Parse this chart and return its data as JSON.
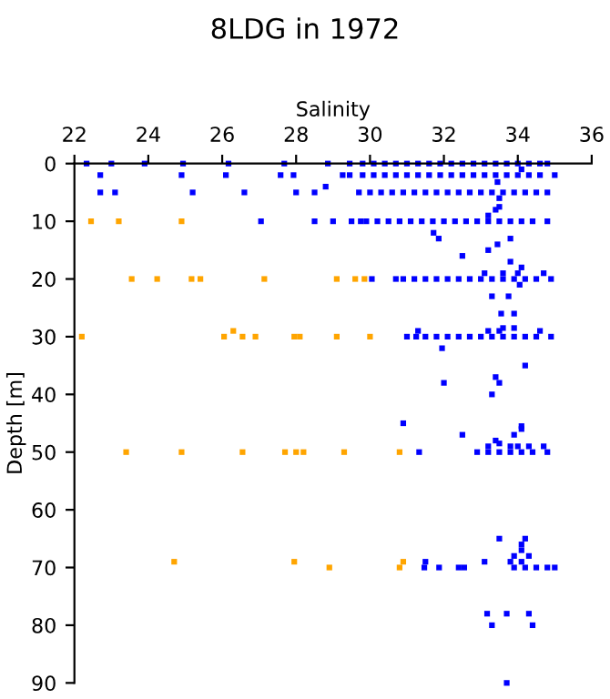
{
  "chart_data": {
    "type": "scatter",
    "title": "8LDG in 1972",
    "xlabel": "Salinity",
    "ylabel": "Depth [m]",
    "xlim": [
      22,
      36
    ],
    "xticks": [
      22,
      24,
      26,
      28,
      30,
      32,
      34,
      36
    ],
    "ylim": [
      90,
      0
    ],
    "yticks": [
      0,
      10,
      20,
      30,
      40,
      50,
      60,
      70,
      80,
      90
    ],
    "marker": "square",
    "grid": false,
    "legend": false,
    "series": [
      {
        "color": "#0000ff",
        "x": [
          22.33,
          23.0,
          23.9,
          24.94,
          26.17,
          27.68,
          28.86,
          29.45,
          29.8,
          30.1,
          30.4,
          30.7,
          31.0,
          31.3,
          31.6,
          31.9,
          32.2,
          32.5,
          32.8,
          33.1,
          33.4,
          33.7,
          34.0,
          34.3,
          34.6,
          34.8,
          34.1,
          22.7,
          24.9,
          26.1,
          27.58,
          27.93,
          29.26,
          29.45,
          29.8,
          30.1,
          30.4,
          30.7,
          31.0,
          31.3,
          31.6,
          31.9,
          32.2,
          32.5,
          32.8,
          33.1,
          33.4,
          33.7,
          34.0,
          34.3,
          34.6,
          35.0,
          33.45,
          28.8,
          22.7,
          23.1,
          25.2,
          26.6,
          28.0,
          28.5,
          29.7,
          30.0,
          30.3,
          30.6,
          30.9,
          31.2,
          31.5,
          31.8,
          32.1,
          32.4,
          32.7,
          33.0,
          33.3,
          33.6,
          33.9,
          34.2,
          34.5,
          34.8,
          33.5,
          33.2,
          33.4,
          33.5,
          27.05,
          28.5,
          29.0,
          29.5,
          29.75,
          29.9,
          30.2,
          30.5,
          30.8,
          31.1,
          31.4,
          31.7,
          32.0,
          32.3,
          32.6,
          32.9,
          33.2,
          33.5,
          33.8,
          34.1,
          34.4,
          34.8,
          31.72,
          31.86,
          32.5,
          33.2,
          33.45,
          33.8,
          33.8,
          34.1,
          34.05,
          33.3,
          33.75,
          33.55,
          33.9,
          30.05,
          30.7,
          30.9,
          31.2,
          31.5,
          31.8,
          32.1,
          32.4,
          32.7,
          33.0,
          33.3,
          33.6,
          33.9,
          34.2,
          34.5,
          34.9,
          33.1,
          33.6,
          34.0,
          34.7,
          31.0,
          31.25,
          31.5,
          31.8,
          32.1,
          32.4,
          32.7,
          33.0,
          33.3,
          33.6,
          33.9,
          34.2,
          34.5,
          34.9,
          31.3,
          33.2,
          33.6,
          33.9,
          34.6,
          33.5,
          31.95,
          34.2,
          32.0,
          33.4,
          33.5,
          33.3,
          30.9,
          32.5,
          33.9,
          34.1,
          34.1,
          33.4,
          31.33,
          32.9,
          33.2,
          33.5,
          33.8,
          34.1,
          34.4,
          34.8,
          33.2,
          33.5,
          33.8,
          34.0,
          34.3,
          34.7,
          31.47,
          31.87,
          32.4,
          32.55,
          33.9,
          34.2,
          34.5,
          34.8,
          35.0,
          33.1,
          31.5,
          33.5,
          34.2,
          34.1,
          34.1,
          33.9,
          34.3,
          33.8,
          34.1,
          33.17,
          33.3,
          33.7,
          34.3,
          34.4,
          33.7
        ],
        "values": [
          0,
          0,
          0,
          0,
          0,
          0,
          0,
          0,
          0,
          0,
          0,
          0,
          0,
          0,
          0,
          0,
          0,
          0,
          0,
          0,
          0,
          0,
          0,
          0,
          0,
          0,
          1,
          2,
          2,
          2,
          2,
          2,
          2,
          2,
          2,
          2,
          2,
          2,
          2,
          2,
          2,
          2,
          2,
          2,
          2,
          2,
          2,
          2,
          2,
          2,
          2,
          2,
          3.2,
          4,
          5,
          5,
          5,
          5,
          5,
          5,
          5,
          5,
          5,
          5,
          5,
          5,
          5,
          5,
          5,
          5,
          5,
          5,
          5,
          5,
          5,
          5,
          5,
          5,
          7.5,
          9,
          8,
          6,
          10,
          10,
          10,
          10,
          10,
          10,
          10,
          10,
          10,
          10,
          10,
          10,
          10,
          10,
          10,
          10,
          10,
          10,
          10,
          10,
          10,
          10,
          12,
          13,
          16,
          15,
          14,
          13,
          17,
          18,
          21,
          23,
          23,
          26,
          26,
          20,
          20,
          20,
          20,
          20,
          20,
          20,
          20,
          20,
          20,
          20,
          20,
          20,
          20,
          20,
          20,
          19,
          19,
          19,
          19,
          30,
          30,
          30,
          30,
          30,
          30,
          30,
          30,
          30,
          30,
          30,
          30,
          30,
          30,
          29,
          29,
          28.5,
          28.5,
          29,
          29,
          32,
          35,
          38,
          37,
          38,
          40,
          45,
          47,
          47,
          45.5,
          46,
          48,
          50,
          50,
          50,
          50,
          50,
          50,
          50,
          50,
          49,
          48.5,
          49,
          49,
          49,
          49,
          70,
          70,
          70,
          70,
          70,
          70,
          70,
          70,
          70,
          69,
          69,
          65,
          65,
          66,
          67,
          68,
          68,
          69,
          69,
          78,
          80,
          78,
          78,
          80,
          90
        ]
      },
      {
        "color": "#ffa500",
        "x": [
          22.45,
          23.2,
          24.9,
          23.55,
          24.24,
          25.17,
          25.41,
          27.14,
          29.1,
          29.6,
          29.85,
          22.2,
          26.05,
          26.55,
          26.9,
          27.95,
          28.1,
          29.1,
          30.0,
          26.3,
          23.4,
          24.9,
          26.55,
          27.7,
          28.0,
          28.2,
          29.3,
          30.8,
          24.7,
          27.95,
          28.9,
          30.8,
          30.9
        ],
        "values": [
          10,
          10,
          10,
          20,
          20,
          20,
          20,
          20,
          20,
          20,
          20,
          30,
          30,
          30,
          30,
          30,
          30,
          30,
          30,
          29,
          50,
          50,
          50,
          50,
          50,
          50,
          50,
          50,
          69,
          69,
          70,
          70,
          69
        ]
      }
    ]
  }
}
